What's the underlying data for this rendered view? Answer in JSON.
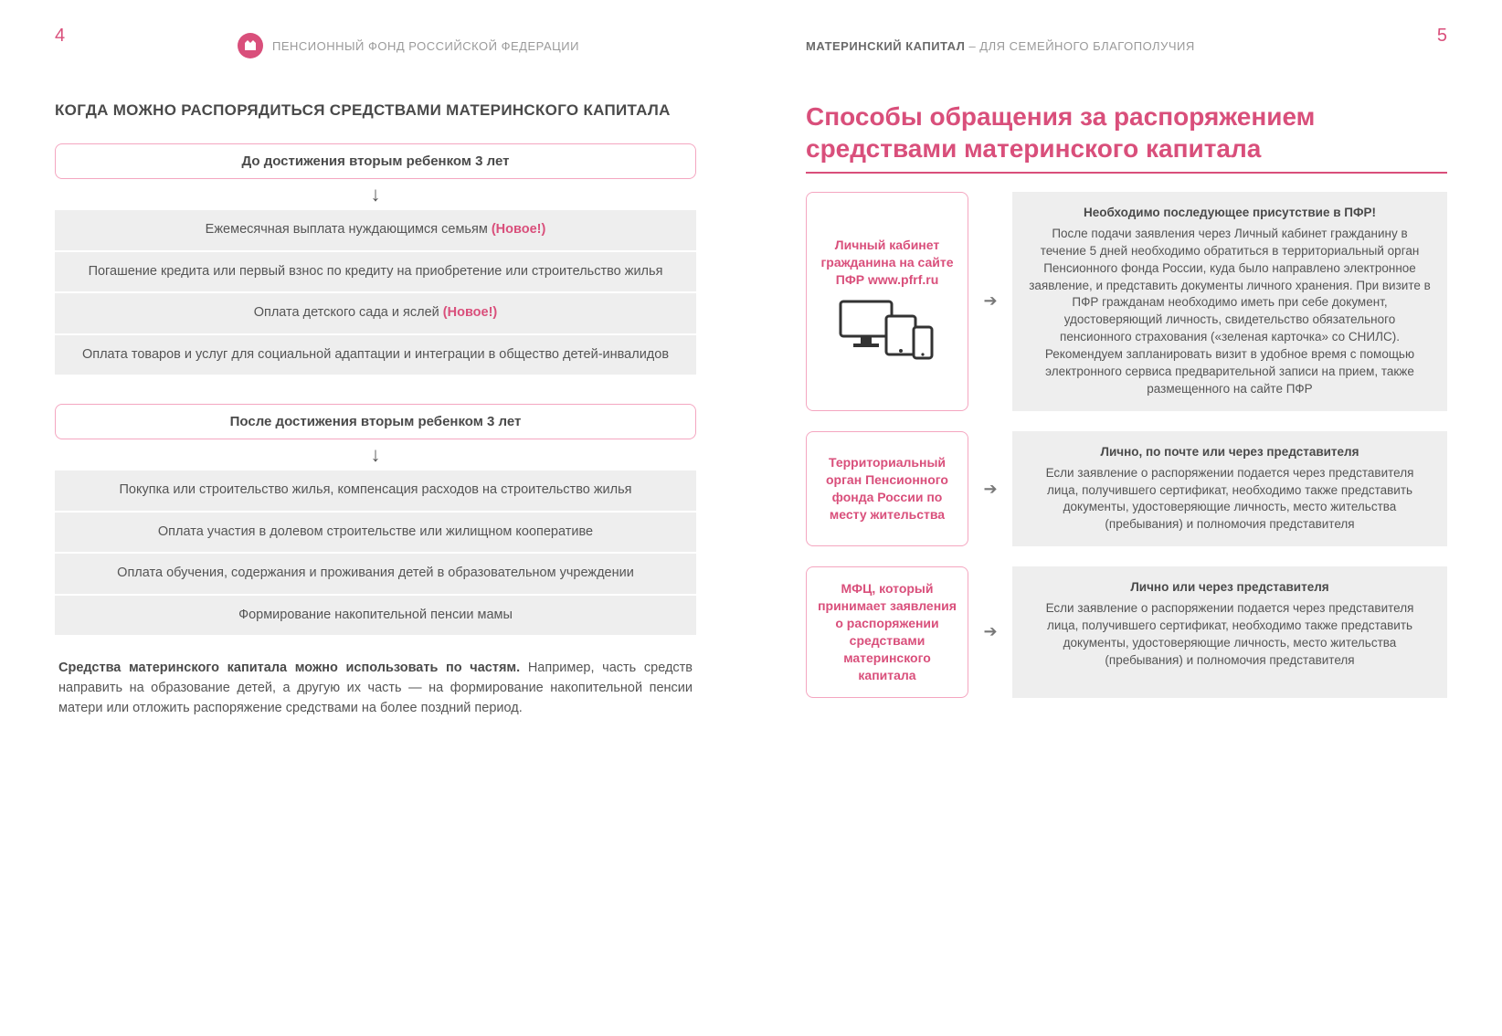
{
  "colors": {
    "pink": "#d94f7b",
    "pink_border": "#f4a6c0",
    "gray_bg": "#eeeeee",
    "text_dark": "#4a4a4a",
    "text_body": "#555555",
    "text_muted": "#9a9a9a"
  },
  "left": {
    "page_number": "4",
    "header_org": "ПЕНСИОННЫЙ ФОНД РОССИЙСКОЙ ФЕДЕРАЦИИ",
    "section_title": "КОГДА МОЖНО РАСПОРЯДИТЬСЯ СРЕДСТВАМИ МАТЕРИНСКОГО КАПИТАЛА",
    "group1_header": "До достижения вторым ребенком 3 лет",
    "group1_items": [
      {
        "text": "Ежемесячная выплата нуждающимся семьям ",
        "tag": "(Новое!)"
      },
      {
        "text": "Погашение кредита или первый взнос по кредиту на приобретение или строительство жилья",
        "tag": ""
      },
      {
        "text": "Оплата детского сада и яслей ",
        "tag": "(Новое!)"
      },
      {
        "text": "Оплата товаров и услуг для социальной адаптации и интеграции в общество детей-инвалидов",
        "tag": ""
      }
    ],
    "group2_header": "После достижения вторым ребенком 3 лет",
    "group2_items": [
      {
        "text": "Покупка или строительство жилья, компенсация расходов на строительство жилья",
        "tag": ""
      },
      {
        "text": "Оплата участия в долевом строительстве или жилищном кооперативе",
        "tag": ""
      },
      {
        "text": "Оплата обучения, содержания и проживания детей в образовательном учреждении",
        "tag": ""
      },
      {
        "text": "Формирование накопительной пенсии мамы",
        "tag": ""
      }
    ],
    "footer_bold": "Средства материнского капитала можно использовать по частям.",
    "footer_rest": " Например, часть средств направить на образование детей, а другую их часть — на формирование накопительной пенсии матери или отложить распоряжение средствами на более поздний период."
  },
  "right": {
    "page_number": "5",
    "header_strong": "МАТЕРИНСКИЙ КАПИТАЛ",
    "header_rest": " – ДЛЯ СЕМЕЙНОГО БЛАГОПОЛУЧИЯ",
    "big_title": "Способы обращения за распоряжением средствами материнского капитала",
    "methods": [
      {
        "left_lines": "Личный кабинет гражданина на сайте ПФР www.pfrf.ru",
        "show_devices": true,
        "right_title": "Необходимо последующее присутствие в ПФР!",
        "right_body": "После подачи заявления через Личный кабинет гражданину в течение 5 дней необходимо обратиться в территориальный орган Пенсионного фонда России, куда было направлено электронное заявление, и представить документы личного хранения. При визите в ПФР гражданам необходимо иметь при себе документ, удостоверяющий личность, свидетельство обязательного пенсионного страхования («зеленая карточка» со СНИЛС). Рекомендуем запланировать визит в удобное время с помощью электронного сервиса предварительной записи на прием, также размещенного на сайте ПФР"
      },
      {
        "left_lines": "Территориальный орган Пенсионного фонда России по месту жительства",
        "show_devices": false,
        "right_title": "Лично, по почте или через представителя",
        "right_body": "Если заявление о распоряжении подается через представителя лица, получившего сертификат, необходимо также представить документы, удостоверяющие личность, место жительства (пребывания) и полномочия представителя"
      },
      {
        "left_lines": "МФЦ, который принимает заявления о распоряжении средствами материнского капитала",
        "show_devices": false,
        "right_title": "Лично или через представителя",
        "right_body": "Если заявление о распоряжении подается через представителя лица, получившего сертификат, необходимо также представить документы, удостоверяющие личность, место жительства (пребывания) и полномочия представителя"
      }
    ]
  }
}
